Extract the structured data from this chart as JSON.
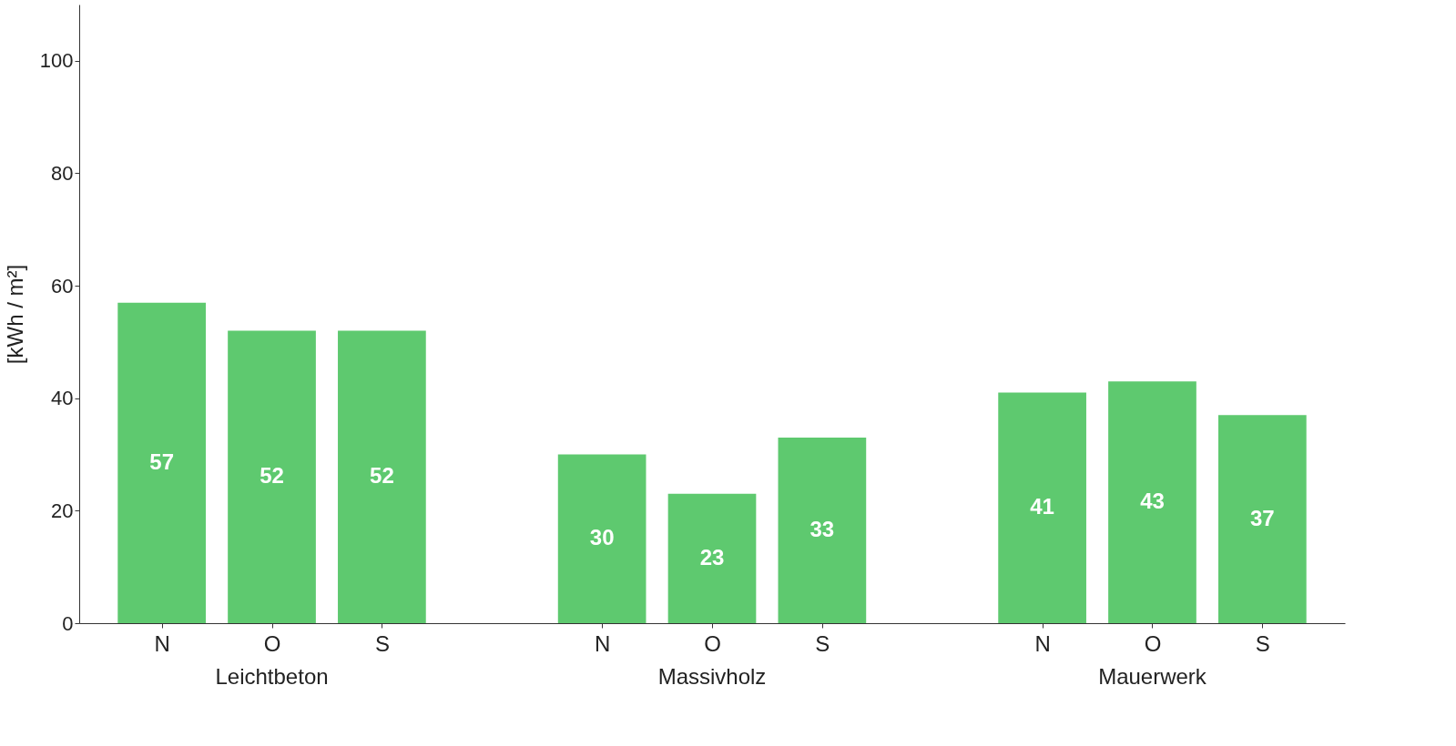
{
  "chart_data": {
    "type": "bar",
    "ylabel": "[kWh / m²]",
    "categories": [
      "N",
      "O",
      "S",
      "N",
      "O",
      "S",
      "N",
      "O",
      "S"
    ],
    "values": [
      57,
      52,
      52,
      30,
      23,
      33,
      41,
      43,
      37
    ],
    "color": "#5ec96f",
    "ylim": [
      0,
      110
    ],
    "yticks": [
      0,
      20,
      40,
      60,
      80,
      100
    ],
    "data_labels": true,
    "grid": false,
    "annotations": [
      "Leichtbeton",
      "Massivholz",
      "Mauerwerk"
    ]
  }
}
